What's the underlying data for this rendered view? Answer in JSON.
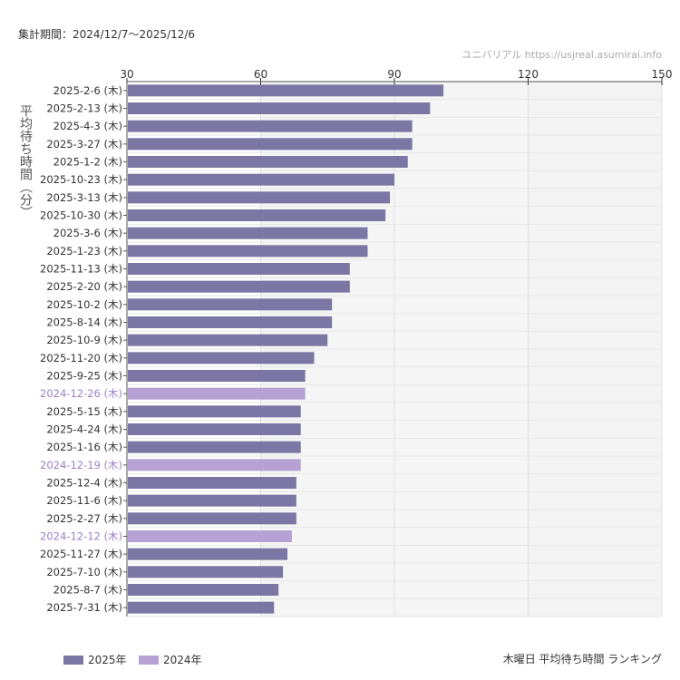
{
  "period_label": "集計期間：2024/12/7〜2025/12/6",
  "credit": "ユニバリアル https://usjreal.asumirai.info",
  "caption": "木曜日 平均待ち時間 ランキング",
  "colors": {
    "2025年": "#7b76a3",
    "2024年": "#b5a1d3"
  },
  "chart_data": {
    "type": "bar",
    "orientation": "horizontal",
    "ylabel": "平均待ち時間（分）",
    "xlim": [
      30,
      150
    ],
    "xticks": [
      30,
      60,
      90,
      120,
      150
    ],
    "legend": [
      "2025年",
      "2024年"
    ],
    "legend_position": "bottom-left",
    "categories": [
      "2025-2-6 (木)",
      "2025-2-13 (木)",
      "2025-4-3 (木)",
      "2025-3-27 (木)",
      "2025-1-2 (木)",
      "2025-10-23 (木)",
      "2025-3-13 (木)",
      "2025-10-30 (木)",
      "2025-3-6 (木)",
      "2025-1-23 (木)",
      "2025-11-13 (木)",
      "2025-2-20 (木)",
      "2025-10-2 (木)",
      "2025-8-14 (木)",
      "2025-10-9 (木)",
      "2025-11-20 (木)",
      "2025-9-25 (木)",
      "2024-12-26 (木)",
      "2025-5-15 (木)",
      "2025-4-24 (木)",
      "2025-1-16 (木)",
      "2024-12-19 (木)",
      "2025-12-4 (木)",
      "2025-11-6 (木)",
      "2025-2-27 (木)",
      "2024-12-12 (木)",
      "2025-11-27 (木)",
      "2025-7-10 (木)",
      "2025-8-7 (木)",
      "2025-7-31 (木)"
    ],
    "values": [
      101,
      98,
      94,
      94,
      93,
      90,
      89,
      88,
      84,
      84,
      80,
      80,
      76,
      76,
      75,
      72,
      70,
      70,
      69,
      69,
      69,
      69,
      68,
      68,
      68,
      67,
      66,
      65,
      64,
      63
    ],
    "series_of": [
      "2025年",
      "2025年",
      "2025年",
      "2025年",
      "2025年",
      "2025年",
      "2025年",
      "2025年",
      "2025年",
      "2025年",
      "2025年",
      "2025年",
      "2025年",
      "2025年",
      "2025年",
      "2025年",
      "2025年",
      "2024年",
      "2025年",
      "2025年",
      "2025年",
      "2024年",
      "2025年",
      "2025年",
      "2025年",
      "2024年",
      "2025年",
      "2025年",
      "2025年",
      "2025年"
    ]
  }
}
